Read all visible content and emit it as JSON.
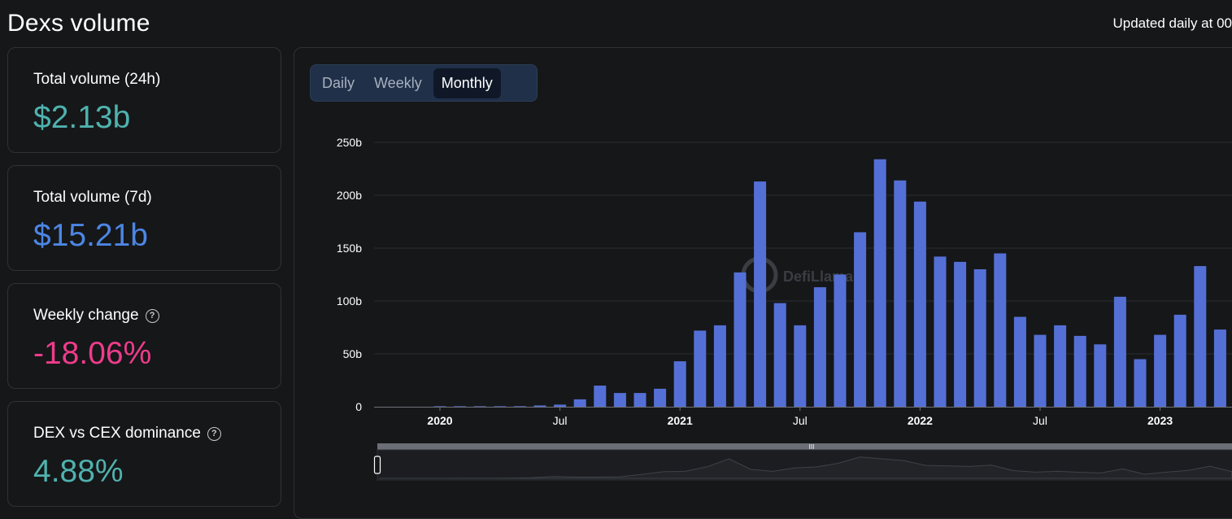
{
  "header": {
    "title": "Dexs volume",
    "updated": "Updated daily at 00"
  },
  "cards": [
    {
      "label": "Total volume (24h)",
      "value": "$2.13b",
      "color": "#4fb2ae"
    },
    {
      "label": "Total volume (7d)",
      "value": "$15.21b",
      "color": "#4c86e4"
    },
    {
      "label": "Weekly change",
      "value": "-18.06%",
      "color": "#ee3c8b"
    },
    {
      "label": "DEX vs CEX dominance",
      "value": "4.88%",
      "color": "#4fb2ae"
    }
  ],
  "tabs": [
    {
      "label": "Daily",
      "active": false
    },
    {
      "label": "Weekly",
      "active": false
    },
    {
      "label": "Monthly",
      "active": true
    }
  ],
  "watermark": "DefiLlama",
  "colors": {
    "bar": "#5470d6",
    "grid": "#2a2d31",
    "background": "#161719"
  },
  "chart_data": {
    "type": "bar",
    "title": "",
    "xlabel": "",
    "ylabel": "",
    "ylim": [
      0,
      250
    ],
    "y_ticks": [
      "0",
      "50b",
      "100b",
      "150b",
      "200b",
      "250b"
    ],
    "x_tick_labels": [
      {
        "label": "2020",
        "month": "2020-01",
        "bold": true
      },
      {
        "label": "Jul",
        "month": "2020-07",
        "bold": false
      },
      {
        "label": "2021",
        "month": "2021-01",
        "bold": true
      },
      {
        "label": "Jul",
        "month": "2021-07",
        "bold": false
      },
      {
        "label": "2022",
        "month": "2022-01",
        "bold": true
      },
      {
        "label": "Jul",
        "month": "2022-07",
        "bold": false
      },
      {
        "label": "2023",
        "month": "2023-01",
        "bold": true
      }
    ],
    "series": [
      {
        "unit": "billion USD",
        "points": [
          {
            "month": "2020-01",
            "value": 0.3
          },
          {
            "month": "2020-02",
            "value": 0.3
          },
          {
            "month": "2020-03",
            "value": 0.4
          },
          {
            "month": "2020-04",
            "value": 0.3
          },
          {
            "month": "2020-05",
            "value": 0.5
          },
          {
            "month": "2020-06",
            "value": 1.2
          },
          {
            "month": "2020-07",
            "value": 2
          },
          {
            "month": "2020-08",
            "value": 7
          },
          {
            "month": "2020-09",
            "value": 20
          },
          {
            "month": "2020-10",
            "value": 13
          },
          {
            "month": "2020-11",
            "value": 13
          },
          {
            "month": "2020-12",
            "value": 17
          },
          {
            "month": "2021-01",
            "value": 43
          },
          {
            "month": "2021-02",
            "value": 72
          },
          {
            "month": "2021-03",
            "value": 77
          },
          {
            "month": "2021-04",
            "value": 127
          },
          {
            "month": "2021-05",
            "value": 213
          },
          {
            "month": "2021-06",
            "value": 98
          },
          {
            "month": "2021-07",
            "value": 77
          },
          {
            "month": "2021-08",
            "value": 113
          },
          {
            "month": "2021-09",
            "value": 125
          },
          {
            "month": "2021-10",
            "value": 165
          },
          {
            "month": "2021-11",
            "value": 234
          },
          {
            "month": "2021-12",
            "value": 214
          },
          {
            "month": "2022-01",
            "value": 194
          },
          {
            "month": "2022-02",
            "value": 142
          },
          {
            "month": "2022-03",
            "value": 137
          },
          {
            "month": "2022-04",
            "value": 130
          },
          {
            "month": "2022-05",
            "value": 145
          },
          {
            "month": "2022-06",
            "value": 85
          },
          {
            "month": "2022-07",
            "value": 68
          },
          {
            "month": "2022-08",
            "value": 77
          },
          {
            "month": "2022-09",
            "value": 67
          },
          {
            "month": "2022-10",
            "value": 59
          },
          {
            "month": "2022-11",
            "value": 104
          },
          {
            "month": "2022-12",
            "value": 45
          },
          {
            "month": "2023-01",
            "value": 68
          },
          {
            "month": "2023-02",
            "value": 87
          },
          {
            "month": "2023-03",
            "value": 133
          },
          {
            "month": "2023-04",
            "value": 73
          }
        ]
      }
    ],
    "grid": true,
    "legend": "none"
  }
}
